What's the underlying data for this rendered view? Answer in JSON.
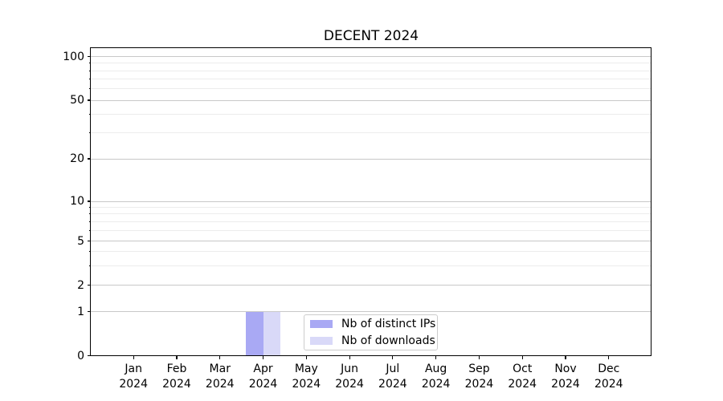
{
  "title": "DECENT 2024",
  "chart_data": {
    "type": "bar",
    "title": "DECENT 2024",
    "x_categories": [
      "Jan",
      "Feb",
      "Mar",
      "Apr",
      "May",
      "Jun",
      "Jul",
      "Aug",
      "Sep",
      "Oct",
      "Nov",
      "Dec"
    ],
    "x_year": "2024",
    "series": [
      {
        "name": "Nb of distinct IPs",
        "color": "#a9a9f4",
        "values": [
          0,
          0,
          0,
          1,
          0,
          0,
          0,
          0,
          0,
          0,
          0,
          0
        ]
      },
      {
        "name": "Nb of downloads",
        "color": "#d9d9f8",
        "values": [
          0,
          0,
          0,
          1,
          0,
          0,
          0,
          0,
          0,
          0,
          0,
          0
        ]
      }
    ],
    "y_axis": {
      "scale": "symlog",
      "major_ticks": [
        0,
        1,
        2,
        5,
        10,
        20,
        50,
        100
      ],
      "minor_ticks": [
        3,
        4,
        6,
        7,
        8,
        9,
        30,
        40,
        60,
        70,
        80,
        90
      ],
      "range": [
        0,
        100
      ]
    },
    "legend": {
      "position": "lower center",
      "entries": [
        "Nb of distinct IPs",
        "Nb of downloads"
      ]
    },
    "grid": {
      "major_color": "#c8c8c8",
      "minor_color": "#ececec"
    },
    "axis_color": "#000000"
  }
}
